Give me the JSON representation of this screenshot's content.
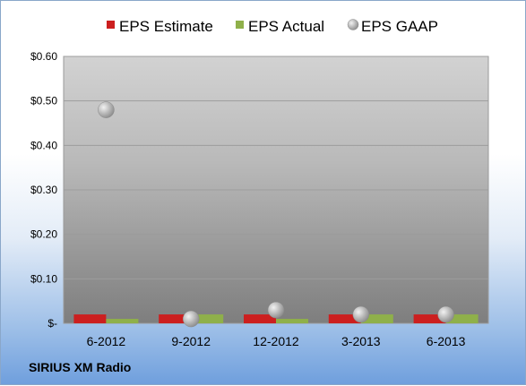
{
  "chart_data": {
    "type": "bar",
    "categories": [
      "6-2012",
      "9-2012",
      "12-2012",
      "3-2013",
      "6-2013"
    ],
    "series": [
      {
        "name": "EPS Estimate",
        "kind": "bar",
        "color": "#cc1f1f",
        "values": [
          0.02,
          0.02,
          0.02,
          0.02,
          0.02
        ]
      },
      {
        "name": "EPS Actual",
        "kind": "bar",
        "color": "#8fb04a",
        "values": [
          0.01,
          0.02,
          0.01,
          0.02,
          0.02
        ]
      },
      {
        "name": "EPS GAAP",
        "kind": "marker",
        "color": "#b4b4b4",
        "values": [
          0.48,
          0.01,
          0.03,
          0.02,
          0.02
        ]
      }
    ],
    "y_ticks": [
      "$-",
      "$0.10",
      "$0.20",
      "$0.30",
      "$0.40",
      "$0.50",
      "$0.60"
    ],
    "ylim": [
      0,
      0.6
    ],
    "grid": true,
    "legend_position": "top",
    "footer": "SIRIUS XM Radio"
  }
}
